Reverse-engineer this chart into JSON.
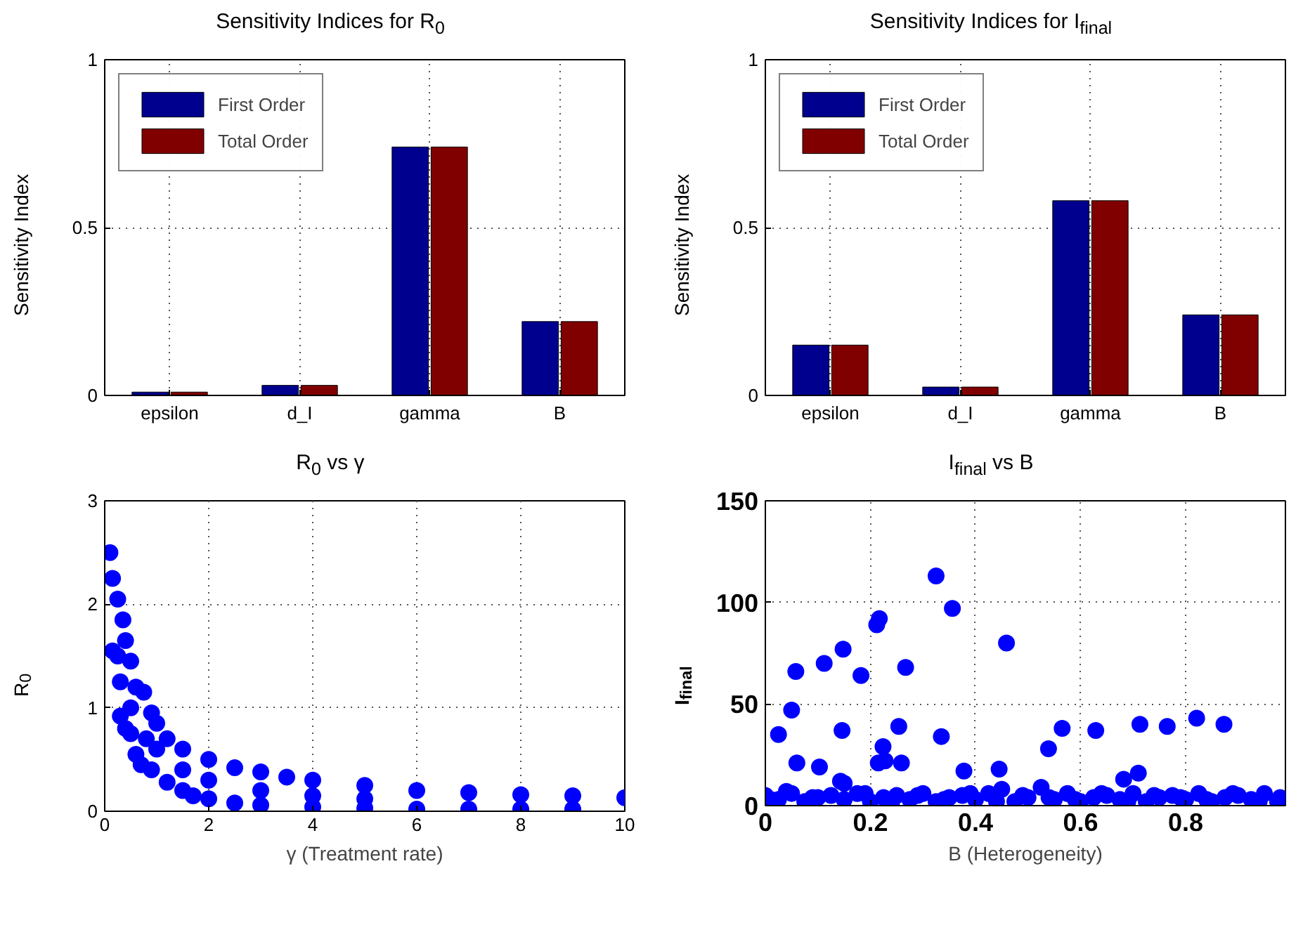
{
  "chart_data": [
    {
      "type": "bar",
      "title": "Sensitivity Indices for R$_{0}$",
      "ylabel": "Sensitivity Index",
      "categories": [
        "epsilon",
        "d_I",
        "gamma",
        "B"
      ],
      "ylim": [
        0,
        1
      ],
      "yticks": [
        0,
        0.5,
        1
      ],
      "grid": true,
      "legend": "top left",
      "series": [
        {
          "name": "First Order",
          "color": "#00008f",
          "values": [
            0.01,
            0.03,
            0.74,
            0.22
          ]
        },
        {
          "name": "Total Order",
          "color": "#800000",
          "values": [
            0.01,
            0.03,
            0.74,
            0.22
          ]
        }
      ]
    },
    {
      "type": "bar",
      "title": "Sensitivity Indices for I$_{final}$",
      "ylabel": "Sensitivity Index",
      "categories": [
        "epsilon",
        "d_I",
        "gamma",
        "B"
      ],
      "ylim": [
        0,
        1
      ],
      "yticks": [
        0,
        0.5,
        1
      ],
      "grid": true,
      "legend": "top left",
      "series": [
        {
          "name": "First Order",
          "color": "#00008f",
          "values": [
            0.15,
            0.025,
            0.58,
            0.24
          ]
        },
        {
          "name": "Total Order",
          "color": "#800000",
          "values": [
            0.15,
            0.025,
            0.58,
            0.24
          ]
        }
      ]
    },
    {
      "type": "scatter",
      "title": "R$_{0}$ vs γ",
      "xlabel": "γ (Treatment rate)",
      "ylabel": "R$_{0}$",
      "xlim": [
        0,
        10
      ],
      "xticks": [
        0,
        2,
        4,
        6,
        8,
        10
      ],
      "ylim": [
        0,
        3
      ],
      "yticks": [
        0,
        1,
        2,
        3
      ],
      "grid": true,
      "marker": "circle",
      "series": [
        {
          "color": "#0000ff",
          "x": [
            0.1,
            0.15,
            0.25,
            0.35,
            0.4,
            0.5,
            0.6,
            0.75,
            0.9,
            1.0,
            1.2,
            1.5,
            2,
            2.5,
            3,
            3.5,
            4,
            5,
            6,
            7,
            8,
            9,
            10,
            0.15,
            0.25,
            0.3,
            0.3,
            0.4,
            0.5,
            0.6,
            0.7,
            0.9,
            1.2,
            1.5,
            1.7,
            2,
            2.5,
            3,
            4,
            5,
            6,
            7,
            8,
            9,
            0.5,
            0.8,
            1,
            1.5,
            2,
            3,
            4,
            5
          ],
          "values": [
            2.5,
            2.25,
            2.05,
            1.85,
            1.65,
            1.45,
            1.2,
            1.15,
            0.95,
            0.85,
            0.7,
            0.6,
            0.5,
            0.42,
            0.38,
            0.33,
            0.3,
            0.25,
            0.2,
            0.18,
            0.16,
            0.15,
            0.13,
            1.55,
            1.5,
            1.25,
            0.92,
            0.8,
            0.75,
            0.55,
            0.45,
            0.4,
            0.28,
            0.2,
            0.15,
            0.12,
            0.08,
            0.06,
            0.04,
            0.03,
            0.02,
            0.02,
            0.02,
            0.02,
            1.0,
            0.7,
            0.6,
            0.4,
            0.3,
            0.2,
            0.15,
            0.12
          ]
        }
      ]
    },
    {
      "type": "scatter",
      "title": "I$_{final}$ vs B",
      "xlabel": "B (Heterogeneity)",
      "ylabel": "I$_{final}$",
      "xlim": [
        0,
        0.99
      ],
      "xticks": [
        0,
        0.2,
        0.4,
        0.6,
        0.8
      ],
      "ylim": [
        0,
        150
      ],
      "yticks": [
        0,
        50,
        100,
        150
      ],
      "grid": true,
      "marker": "circle",
      "series": [
        {
          "color": "#0000ff",
          "x": [
            0.025,
            0.05,
            0.058,
            0.06,
            0.103,
            0.112,
            0.146,
            0.148,
            0.182,
            0.212,
            0.217,
            0.215,
            0.224,
            0.228,
            0.254,
            0.259,
            0.267,
            0.325,
            0.335,
            0.356,
            0.378,
            0.445,
            0.459,
            0.539,
            0.565,
            0.629,
            0.682,
            0.71,
            0.713,
            0.765,
            0.821,
            0.873,
            0.143,
            0.15,
            0.0,
            0.025,
            0.05,
            0.075,
            0.1,
            0.125,
            0.15,
            0.175,
            0.2,
            0.225,
            0.25,
            0.275,
            0.3,
            0.325,
            0.35,
            0.375,
            0.4,
            0.425,
            0.45,
            0.475,
            0.5,
            0.525,
            0.55,
            0.575,
            0.6,
            0.625,
            0.65,
            0.675,
            0.7,
            0.725,
            0.75,
            0.775,
            0.8,
            0.825,
            0.85,
            0.875,
            0.9,
            0.925,
            0.95,
            0.975,
            0.01,
            0.04,
            0.09,
            0.19,
            0.24,
            0.29,
            0.34,
            0.39,
            0.44,
            0.49,
            0.54,
            0.59,
            0.64,
            0.69,
            0.74,
            0.79,
            0.84,
            0.89,
            0.94,
            0.98
          ],
          "values": [
            35,
            47,
            66,
            21,
            19,
            70,
            37,
            77,
            64,
            89,
            92,
            21,
            29,
            22,
            39,
            21,
            68,
            113,
            34,
            97,
            17,
            18,
            80,
            28,
            38,
            37,
            13,
            16,
            40,
            39,
            43,
            40,
            12,
            11,
            5,
            3,
            6,
            2,
            4,
            5,
            3,
            6,
            2,
            4,
            5,
            3,
            6,
            2,
            4,
            5,
            3,
            6,
            8,
            2,
            4,
            9,
            3,
            6,
            2,
            4,
            5,
            3,
            6,
            2,
            4,
            5,
            3,
            6,
            2,
            4,
            5,
            3,
            6,
            2,
            3,
            7,
            4,
            6,
            1,
            5,
            3,
            6,
            2,
            5,
            4,
            3,
            6,
            2,
            5,
            4,
            3,
            6,
            2,
            4
          ]
        }
      ]
    }
  ]
}
